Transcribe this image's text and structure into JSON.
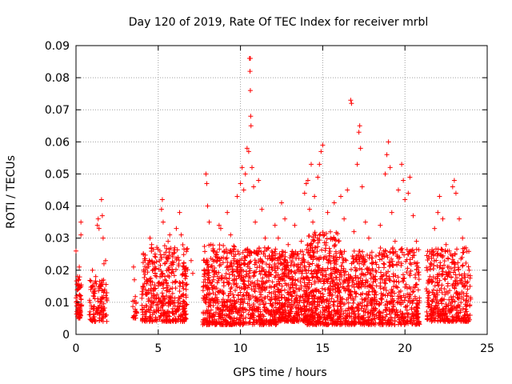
{
  "chart_data": {
    "type": "scatter",
    "title": "Day 120 of 2019, Rate Of TEC Index for receiver mrbl",
    "xlabel": "GPS time / hours",
    "ylabel": "ROTI / TECUs",
    "xlim": [
      0,
      25
    ],
    "ylim": [
      0,
      0.09
    ],
    "xticks": [
      "0",
      "5",
      "10",
      "15",
      "20",
      "25"
    ],
    "yticks": [
      "0",
      "0.01",
      "0.02",
      "0.03",
      "0.04",
      "0.05",
      "0.06",
      "0.07",
      "0.08",
      "0.09"
    ],
    "grid": true,
    "marker": "+",
    "color": "#ff0000",
    "series": [
      {
        "points": [
          [
            0.0,
            0.026
          ],
          [
            0.05,
            0.012
          ],
          [
            0.1,
            0.018
          ],
          [
            0.15,
            0.009
          ],
          [
            0.2,
            0.021
          ],
          [
            0.25,
            0.007
          ],
          [
            0.3,
            0.035
          ],
          [
            0.3,
            0.031
          ],
          [
            0.3,
            0.011
          ],
          [
            0.85,
            0.01
          ],
          [
            0.9,
            0.014
          ],
          [
            1.0,
            0.02
          ],
          [
            1.05,
            0.012
          ],
          [
            1.1,
            0.008
          ],
          [
            1.2,
            0.018
          ],
          [
            1.3,
            0.034
          ],
          [
            1.35,
            0.036
          ],
          [
            1.4,
            0.033
          ],
          [
            1.45,
            0.015
          ],
          [
            1.5,
            0.011
          ],
          [
            1.55,
            0.042
          ],
          [
            1.6,
            0.037
          ],
          [
            1.65,
            0.03
          ],
          [
            1.7,
            0.022
          ],
          [
            1.75,
            0.014
          ],
          [
            1.8,
            0.023
          ],
          [
            1.85,
            0.006
          ],
          [
            3.5,
            0.021
          ],
          [
            3.55,
            0.017
          ],
          [
            3.6,
            0.007
          ],
          [
            3.65,
            0.01
          ],
          [
            4.1,
            0.015
          ],
          [
            4.2,
            0.023
          ],
          [
            4.3,
            0.017
          ],
          [
            4.4,
            0.011
          ],
          [
            4.5,
            0.03
          ],
          [
            4.6,
            0.028
          ],
          [
            4.7,
            0.012
          ],
          [
            4.8,
            0.021
          ],
          [
            4.9,
            0.018
          ],
          [
            5.0,
            0.016
          ],
          [
            5.1,
            0.026
          ],
          [
            5.2,
            0.039
          ],
          [
            5.25,
            0.042
          ],
          [
            5.3,
            0.035
          ],
          [
            5.4,
            0.022
          ],
          [
            5.5,
            0.012
          ],
          [
            5.6,
            0.029
          ],
          [
            5.7,
            0.031
          ],
          [
            5.8,
            0.019
          ],
          [
            5.9,
            0.01
          ],
          [
            6.0,
            0.027
          ],
          [
            6.1,
            0.033
          ],
          [
            6.2,
            0.024
          ],
          [
            6.3,
            0.038
          ],
          [
            6.4,
            0.031
          ],
          [
            6.5,
            0.016
          ],
          [
            6.6,
            0.01
          ],
          [
            7.0,
            0.023
          ],
          [
            7.1,
            0.019
          ],
          [
            7.8,
            0.012
          ],
          [
            7.9,
            0.05
          ],
          [
            7.95,
            0.047
          ],
          [
            8.0,
            0.04
          ],
          [
            8.1,
            0.035
          ],
          [
            8.2,
            0.028
          ],
          [
            8.3,
            0.02
          ],
          [
            8.4,
            0.015
          ],
          [
            8.5,
            0.025
          ],
          [
            8.6,
            0.018
          ],
          [
            8.7,
            0.034
          ],
          [
            8.8,
            0.033
          ],
          [
            9.0,
            0.026
          ],
          [
            9.2,
            0.038
          ],
          [
            9.4,
            0.031
          ],
          [
            9.6,
            0.022
          ],
          [
            9.8,
            0.043
          ],
          [
            10.0,
            0.047
          ],
          [
            10.1,
            0.052
          ],
          [
            10.2,
            0.045
          ],
          [
            10.3,
            0.05
          ],
          [
            10.4,
            0.058
          ],
          [
            10.5,
            0.057
          ],
          [
            10.55,
            0.086
          ],
          [
            10.6,
            0.086
          ],
          [
            10.58,
            0.082
          ],
          [
            10.6,
            0.076
          ],
          [
            10.62,
            0.068
          ],
          [
            10.64,
            0.065
          ],
          [
            10.7,
            0.052
          ],
          [
            10.8,
            0.046
          ],
          [
            10.9,
            0.035
          ],
          [
            11.1,
            0.048
          ],
          [
            11.3,
            0.039
          ],
          [
            11.5,
            0.03
          ],
          [
            11.7,
            0.027
          ],
          [
            11.9,
            0.021
          ],
          [
            12.1,
            0.034
          ],
          [
            12.3,
            0.03
          ],
          [
            12.5,
            0.041
          ],
          [
            12.7,
            0.036
          ],
          [
            12.9,
            0.028
          ],
          [
            13.1,
            0.025
          ],
          [
            13.3,
            0.034
          ],
          [
            13.5,
            0.021
          ],
          [
            13.7,
            0.029
          ],
          [
            13.9,
            0.044
          ],
          [
            14.0,
            0.047
          ],
          [
            14.1,
            0.048
          ],
          [
            14.2,
            0.039
          ],
          [
            14.3,
            0.053
          ],
          [
            14.4,
            0.035
          ],
          [
            14.5,
            0.043
          ],
          [
            14.7,
            0.049
          ],
          [
            14.8,
            0.053
          ],
          [
            14.9,
            0.057
          ],
          [
            15.0,
            0.059
          ],
          [
            15.1,
            0.031
          ],
          [
            15.3,
            0.038
          ],
          [
            15.5,
            0.03
          ],
          [
            15.7,
            0.041
          ],
          [
            15.9,
            0.02
          ],
          [
            16.1,
            0.043
          ],
          [
            16.3,
            0.036
          ],
          [
            16.5,
            0.045
          ],
          [
            16.7,
            0.073
          ],
          [
            16.75,
            0.072
          ],
          [
            16.9,
            0.032
          ],
          [
            17.1,
            0.053
          ],
          [
            17.2,
            0.063
          ],
          [
            17.25,
            0.065
          ],
          [
            17.3,
            0.058
          ],
          [
            17.4,
            0.046
          ],
          [
            17.6,
            0.035
          ],
          [
            17.8,
            0.03
          ],
          [
            18.0,
            0.022
          ],
          [
            18.2,
            0.018
          ],
          [
            18.5,
            0.034
          ],
          [
            18.7,
            0.026
          ],
          [
            18.8,
            0.05
          ],
          [
            18.9,
            0.056
          ],
          [
            19.0,
            0.06
          ],
          [
            19.1,
            0.052
          ],
          [
            19.2,
            0.038
          ],
          [
            19.4,
            0.029
          ],
          [
            19.6,
            0.045
          ],
          [
            19.8,
            0.053
          ],
          [
            19.9,
            0.048
          ],
          [
            20.0,
            0.042
          ],
          [
            20.2,
            0.044
          ],
          [
            20.3,
            0.049
          ],
          [
            20.5,
            0.037
          ],
          [
            20.7,
            0.029
          ],
          [
            21.4,
            0.016
          ],
          [
            21.6,
            0.025
          ],
          [
            21.8,
            0.033
          ],
          [
            22.0,
            0.038
          ],
          [
            22.1,
            0.043
          ],
          [
            22.3,
            0.036
          ],
          [
            22.5,
            0.028
          ],
          [
            22.7,
            0.026
          ],
          [
            22.9,
            0.046
          ],
          [
            23.0,
            0.048
          ],
          [
            23.1,
            0.044
          ],
          [
            23.3,
            0.036
          ],
          [
            23.5,
            0.03
          ],
          [
            23.7,
            0.027
          ],
          [
            23.9,
            0.02
          ],
          [
            24.0,
            0.011
          ]
        ],
        "bands": [
          {
            "x": [
              0.0,
              0.35
            ],
            "y": [
              0.005,
              0.018
            ],
            "n": 55
          },
          {
            "x": [
              0.8,
              1.9
            ],
            "y": [
              0.004,
              0.017
            ],
            "n": 110
          },
          {
            "x": [
              3.45,
              3.7
            ],
            "y": [
              0.005,
              0.012
            ],
            "n": 18
          },
          {
            "x": [
              4.0,
              6.8
            ],
            "y": [
              0.004,
              0.028
            ],
            "n": 420
          },
          {
            "x": [
              7.7,
              10.0
            ],
            "y": [
              0.003,
              0.028
            ],
            "n": 430
          },
          {
            "x": [
              10.0,
              12.2
            ],
            "y": [
              0.003,
              0.027
            ],
            "n": 380
          },
          {
            "x": [
              12.2,
              14.0
            ],
            "y": [
              0.004,
              0.026
            ],
            "n": 360
          },
          {
            "x": [
              14.0,
              16.0
            ],
            "y": [
              0.003,
              0.032
            ],
            "n": 470
          },
          {
            "x": [
              16.0,
              18.3
            ],
            "y": [
              0.003,
              0.026
            ],
            "n": 400
          },
          {
            "x": [
              18.4,
              20.9
            ],
            "y": [
              0.003,
              0.027
            ],
            "n": 380
          },
          {
            "x": [
              21.3,
              24.0
            ],
            "y": [
              0.004,
              0.027
            ],
            "n": 420
          }
        ]
      }
    ]
  }
}
